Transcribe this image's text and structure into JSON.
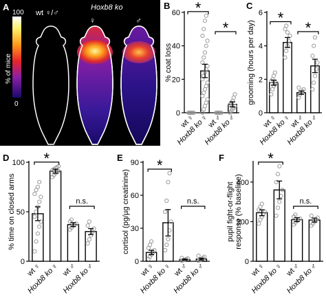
{
  "panel_a": {
    "letter": "A",
    "colorbar_max": "100",
    "colorbar_min": "0",
    "colorbar_label": "% of mice",
    "group_label_1": "wt ♀/♂",
    "group_label_2": "Hoxb8 ko",
    "sex_label_female": "♀",
    "sex_label_male": "♂",
    "colors": {
      "background": "#000000",
      "outline": "#ffffff"
    }
  },
  "chart_data": [
    {
      "id": "B",
      "letter": "B",
      "type": "bar",
      "categories": [
        {
          "line1": "wt",
          "sex": "♀"
        },
        {
          "line1": "Hoxb8 ko",
          "sex": "♀"
        },
        {
          "line1": "wt",
          "sex": "♂"
        },
        {
          "line1": "Hoxb8 ko",
          "sex": "♂"
        }
      ],
      "ylabel": "% coat loss",
      "ylim": [
        0,
        60
      ],
      "yticks": [
        0,
        20,
        40,
        60
      ],
      "values": [
        0,
        25,
        0,
        5
      ],
      "errors": [
        0,
        4,
        0,
        1.5
      ],
      "points": [
        [
          0,
          0,
          0,
          0,
          0,
          0,
          0,
          0
        ],
        [
          0,
          2,
          4,
          6,
          8,
          10,
          12,
          14,
          16,
          18,
          20,
          22,
          24,
          26,
          28,
          30,
          33,
          36,
          40,
          43,
          46,
          50,
          55,
          58
        ],
        [
          0,
          0,
          0,
          0,
          0,
          0,
          0,
          0
        ],
        [
          0,
          1,
          2,
          3,
          4,
          5,
          6,
          7,
          9,
          11
        ]
      ],
      "significance": [
        {
          "from": 0,
          "to": 1,
          "label": "*"
        },
        {
          "from": 2,
          "to": 3,
          "label": "*"
        }
      ]
    },
    {
      "id": "C",
      "letter": "C",
      "type": "bar",
      "categories": [
        {
          "line1": "wt",
          "sex": "♀"
        },
        {
          "line1": "Hoxb8 ko",
          "sex": "♀"
        },
        {
          "line1": "wt",
          "sex": "♂"
        },
        {
          "line1": "Hoxb8 ko",
          "sex": "♂"
        }
      ],
      "ylabel": "grooming (hours per day)",
      "ylim": [
        0,
        6
      ],
      "yticks": [
        0,
        2,
        4,
        6
      ],
      "values": [
        1.8,
        4.2,
        1.2,
        2.8
      ],
      "errors": [
        0.15,
        0.3,
        0.1,
        0.4
      ],
      "points": [
        [
          1.1,
          1.4,
          1.6,
          1.7,
          1.8,
          1.9,
          2.0,
          2.2,
          2.4
        ],
        [
          3.3,
          3.7,
          4.0,
          4.3,
          4.6,
          5.0,
          5.2,
          4.8
        ],
        [
          0.9,
          1.1,
          1.2,
          1.3,
          1.4,
          1.5
        ],
        [
          1.4,
          1.8,
          2.2,
          2.6,
          3.0,
          3.4,
          4.0,
          4.5
        ]
      ],
      "significance": [
        {
          "from": 0,
          "to": 1,
          "label": "*"
        },
        {
          "from": 2,
          "to": 3,
          "label": "*"
        }
      ]
    },
    {
      "id": "D",
      "letter": "D",
      "type": "bar",
      "categories": [
        {
          "line1": "wt",
          "sex": "♀"
        },
        {
          "line1": "Hoxb8 ko",
          "sex": "♀"
        },
        {
          "line1": "wt",
          "sex": "♂"
        },
        {
          "line1": "Hoxb8 ko",
          "sex": "♂"
        }
      ],
      "ylabel": "% time on closed arms",
      "ylim": [
        0,
        100
      ],
      "yticks": [
        0,
        50,
        100
      ],
      "values": [
        48,
        91,
        37,
        30
      ],
      "errors": [
        7,
        2,
        2,
        3
      ],
      "points": [
        [
          10,
          20,
          28,
          35,
          40,
          45,
          50,
          55,
          60,
          65,
          68,
          72,
          75,
          80
        ],
        [
          85,
          87,
          89,
          90,
          91,
          92,
          93,
          94,
          95,
          96
        ],
        [
          32,
          34,
          36,
          37,
          38,
          40,
          42
        ],
        [
          18,
          22,
          26,
          30,
          33,
          36,
          40
        ]
      ],
      "significance": [
        {
          "from": 0,
          "to": 1,
          "label": "*"
        },
        {
          "from": 2,
          "to": 3,
          "label": "n.s."
        }
      ]
    },
    {
      "id": "E",
      "letter": "E",
      "type": "bar",
      "categories": [
        {
          "line1": "wt",
          "sex": "♀"
        },
        {
          "line1": "Hoxb8 ko",
          "sex": "♀"
        },
        {
          "line1": "wt",
          "sex": "♂"
        },
        {
          "line1": "Hoxb8 ko",
          "sex": "♂"
        }
      ],
      "ylabel": "cortisol (pg/µg creatinine)",
      "ylim": [
        0,
        90
      ],
      "yticks": [
        0,
        30,
        60,
        90
      ],
      "values": [
        8,
        35,
        1.5,
        2
      ],
      "errors": [
        2,
        12,
        0.5,
        0.8
      ],
      "points": [
        [
          2,
          4,
          6,
          8,
          10,
          12,
          15,
          18
        ],
        [
          10,
          15,
          20,
          28,
          36,
          45,
          55,
          72,
          80
        ],
        [
          0.5,
          1,
          1.5,
          2,
          2.5,
          3
        ],
        [
          0.5,
          1,
          2,
          3,
          4,
          5
        ]
      ],
      "significance": [
        {
          "from": 0,
          "to": 1,
          "label": "*"
        },
        {
          "from": 2,
          "to": 3,
          "label": "n.s."
        }
      ]
    },
    {
      "id": "F",
      "letter": "F",
      "type": "bar",
      "categories": [
        {
          "line1": "wt",
          "sex": "♀"
        },
        {
          "line1": "Hoxb8 ko",
          "sex": "♀"
        },
        {
          "line1": "wt",
          "sex": "♂"
        },
        {
          "line1": "Hoxb8 ko",
          "sex": "♂"
        }
      ],
      "ylabel": "pupil fight-or-flight response (% baseline)",
      "ylabel_lines": [
        "pupil fight-or-flight",
        "response (% baseline)"
      ],
      "ylim": [
        0,
        500
      ],
      "yticks": [
        0,
        200,
        400
      ],
      "values": [
        245,
        360,
        210,
        208
      ],
      "errors": [
        15,
        45,
        10,
        10
      ],
      "points": [
        [
          190,
          210,
          225,
          240,
          250,
          260,
          275,
          290
        ],
        [
          230,
          270,
          300,
          330,
          360,
          400,
          440,
          480
        ],
        [
          185,
          195,
          205,
          210,
          215,
          225,
          235
        ],
        [
          180,
          190,
          200,
          210,
          220,
          230
        ]
      ],
      "significance": [
        {
          "from": 0,
          "to": 1,
          "label": "*"
        },
        {
          "from": 2,
          "to": 3,
          "label": "n.s."
        }
      ]
    }
  ]
}
